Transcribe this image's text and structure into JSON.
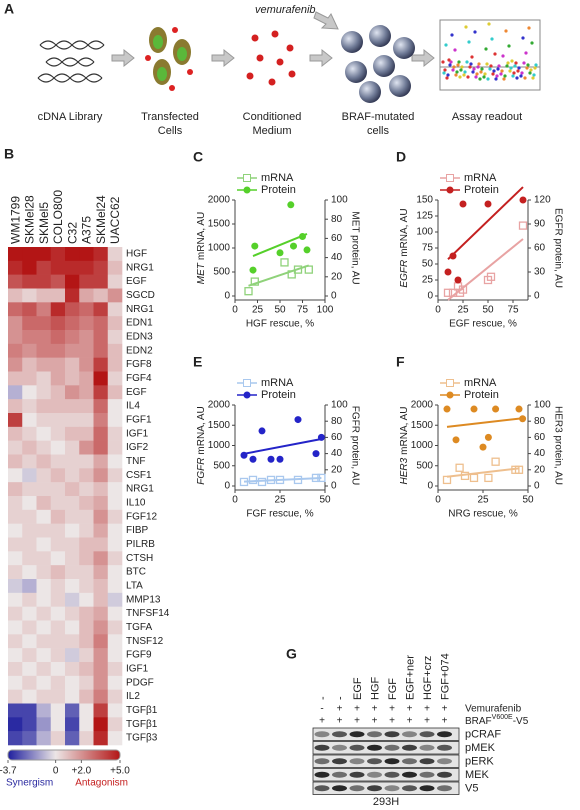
{
  "panel_a": {
    "label": "A",
    "drug": "vemurafenib",
    "steps": [
      [
        "cDNA Library"
      ],
      [
        "Transfected",
        "Cells"
      ],
      [
        "Conditioned",
        "Medium"
      ],
      [
        "BRAF-mutated",
        "cells"
      ],
      [
        "Assay readout"
      ]
    ]
  },
  "chart_data": [
    {
      "type": "heatmap",
      "label": "B",
      "columns": [
        "WM1799",
        "SKMel28",
        "SKMel5",
        "COLO800",
        "C32",
        "A375",
        "SKMel24",
        "UACC62"
      ],
      "rows": [
        "HGF",
        "NRG1",
        "EGF",
        "SGCD",
        "NRG1",
        "EDN1",
        "EDN3",
        "EDN2",
        "FGF8",
        "FGF4",
        "EGF",
        "IL4",
        "FGF1",
        "IGF1",
        "IGF2",
        "TNF",
        "CSF1",
        "NRG1",
        "IL10",
        "FGF12",
        "FIBP",
        "PILRB",
        "CTSH",
        "BTC",
        "LTA",
        "MMP13",
        "TNFSF14",
        "TGFA",
        "TNSF12",
        "FGF9",
        "IGF1",
        "PDGF",
        "IL2",
        "TGFβ1",
        "TGFβ1",
        "TGFβ3"
      ],
      "values": [
        [
          5,
          5,
          5,
          4.5,
          5,
          5,
          4.5,
          0.5
        ],
        [
          4.5,
          5,
          4,
          4.5,
          4.5,
          4.5,
          4,
          1
        ],
        [
          3.5,
          4,
          4,
          3.5,
          5,
          4,
          4,
          0.5
        ],
        [
          1,
          0.5,
          1,
          1,
          4.5,
          1.5,
          1,
          2
        ],
        [
          3,
          3.5,
          2.5,
          4.5,
          3.5,
          3,
          4,
          0.5
        ],
        [
          2,
          3,
          3,
          3.5,
          3,
          2.5,
          3,
          1
        ],
        [
          2,
          2.5,
          2.5,
          3,
          2.5,
          2,
          3,
          0.5
        ],
        [
          2.5,
          2,
          2.5,
          2.5,
          2,
          2,
          3,
          1
        ],
        [
          2,
          1,
          1.5,
          1.5,
          1,
          2,
          4,
          1
        ],
        [
          1,
          1,
          0.5,
          1.5,
          1,
          1.5,
          5,
          0.5
        ],
        [
          -1,
          0,
          0.5,
          1,
          2,
          1.5,
          4,
          1
        ],
        [
          1,
          0.5,
          1,
          1,
          1,
          1,
          3,
          0
        ],
        [
          4,
          0,
          0.5,
          0.5,
          0.5,
          0.5,
          2.5,
          0
        ],
        [
          1,
          0.5,
          0,
          0.5,
          1,
          1,
          3,
          0.5
        ],
        [
          0.5,
          1,
          0.5,
          0,
          0.5,
          2,
          3,
          0.5
        ],
        [
          1,
          0.5,
          1,
          0.5,
          0.5,
          0.5,
          1.5,
          0
        ],
        [
          0,
          -0.5,
          0.5,
          1,
          0.5,
          1,
          2,
          0.5
        ],
        [
          1,
          0.5,
          0.5,
          0.5,
          1,
          0.5,
          1,
          0
        ],
        [
          0.5,
          0,
          1,
          0.5,
          0.5,
          1,
          1.5,
          0
        ],
        [
          0.5,
          0.5,
          0,
          1,
          0.5,
          0.5,
          2,
          0.5
        ],
        [
          0,
          0.5,
          0.5,
          0.5,
          0,
          0.5,
          1.5,
          0
        ],
        [
          0.5,
          0.5,
          0,
          0.5,
          0.5,
          1,
          1,
          0
        ],
        [
          0,
          0.5,
          0.5,
          0,
          0.5,
          1,
          2,
          0.5
        ],
        [
          0.5,
          0,
          0.5,
          1,
          0.5,
          0.5,
          1.5,
          0
        ],
        [
          -0.5,
          -1,
          0,
          0.5,
          0,
          0.5,
          1,
          0
        ],
        [
          0,
          0.5,
          0,
          0.5,
          -0.5,
          0,
          1,
          -0.5
        ],
        [
          0.5,
          0,
          0.5,
          0,
          0.5,
          1,
          1.5,
          0
        ],
        [
          0,
          0.5,
          0,
          0.5,
          0,
          1,
          2,
          0.5
        ],
        [
          0.5,
          0,
          0.5,
          0.5,
          0.5,
          1,
          2.5,
          0
        ],
        [
          0,
          0.5,
          0,
          0.5,
          -0.5,
          0.5,
          2,
          0
        ],
        [
          0.5,
          0,
          0.5,
          0,
          0.5,
          1,
          2,
          0.5
        ],
        [
          0,
          0.5,
          0,
          0.5,
          0,
          0.5,
          2,
          0
        ],
        [
          0.5,
          0,
          0.5,
          0.5,
          0,
          1,
          2.5,
          0.5
        ],
        [
          -3,
          -3,
          -1,
          0,
          -2.5,
          0,
          4,
          0
        ],
        [
          -3.5,
          -3,
          -1.5,
          0,
          -3,
          0,
          5,
          0.5
        ],
        [
          -3,
          -2.5,
          -1,
          0.5,
          -2.5,
          0.5,
          4.5,
          0
        ]
      ],
      "colorbar": {
        "lim": [
          -3.7,
          5
        ],
        "colors": [
          "#1f1f9e",
          "#ece6e6",
          "#b31515"
        ],
        "ticks": [
          -3.7,
          0,
          {
            "value": 2,
            "label": "+2.0"
          },
          {
            "value": 5,
            "label": "+5.0"
          }
        ],
        "labels": [
          "Synergism",
          "Antagonism"
        ]
      }
    },
    {
      "type": "scatter",
      "label": "C",
      "xlabel": "HGF rescue, %",
      "ylabel_gene": "MET",
      "ylabel": "mRNA, AU",
      "y2label": "MET protein, AU",
      "xlim": [
        0,
        100
      ],
      "xticks": [
        0,
        25,
        50,
        75,
        100
      ],
      "ylim": [
        0,
        2000
      ],
      "yticks": [
        0,
        500,
        1000,
        1500,
        2000
      ],
      "y2lim": [
        0,
        100
      ],
      "y2ticks": [
        0,
        20,
        40,
        60,
        80,
        100
      ],
      "trendline": true,
      "series": [
        {
          "name": "mRNA",
          "color": "#8fd27a",
          "marker": "square",
          "x": [
            15,
            22,
            55,
            63,
            70,
            82
          ],
          "values": [
            100,
            300,
            700,
            450,
            550,
            550
          ]
        },
        {
          "name": "Protein",
          "color": "#55d02a",
          "marker": "circle",
          "axis": "y2",
          "x": [
            20,
            22,
            50,
            62,
            65,
            75,
            80
          ],
          "values": [
            27,
            52,
            45,
            95,
            52,
            62,
            48
          ]
        }
      ]
    },
    {
      "type": "scatter",
      "label": "D",
      "xlabel": "EGF rescue, %",
      "ylabel_gene": "EGFR",
      "ylabel": "mRNA, AU",
      "y2label": "EGFR protein, AU",
      "xlim": [
        0,
        90
      ],
      "xticks": [
        0,
        25,
        50,
        75
      ],
      "ylim": [
        0,
        150
      ],
      "yticks": [
        0,
        25,
        50,
        75,
        100,
        125,
        150
      ],
      "y2lim": [
        0,
        120
      ],
      "y2ticks": [
        0,
        30,
        60,
        90,
        120
      ],
      "trendline": true,
      "series": [
        {
          "name": "mRNA",
          "color": "#e8a3a3",
          "marker": "square",
          "x": [
            10,
            15,
            20,
            22,
            25,
            50,
            53,
            85
          ],
          "values": [
            5,
            5,
            15,
            5,
            10,
            25,
            30,
            110
          ]
        },
        {
          "name": "Protein",
          "color": "#c42020",
          "marker": "circle",
          "axis": "y2",
          "x": [
            10,
            15,
            20,
            25,
            50,
            85
          ],
          "values": [
            30,
            50,
            20,
            115,
            115,
            120
          ]
        }
      ]
    },
    {
      "type": "scatter",
      "label": "E",
      "xlabel": "FGF rescue, %",
      "ylabel_gene": "FGFR",
      "ylabel": "mRNA, AU",
      "y2label": "FGFR protein, AU",
      "xlim": [
        0,
        50
      ],
      "xticks": [
        0,
        25,
        50
      ],
      "ylim": [
        0,
        2000
      ],
      "yticks": [
        0,
        500,
        1000,
        1500,
        2000
      ],
      "y2lim": [
        0,
        100
      ],
      "y2ticks": [
        0,
        20,
        40,
        60,
        80,
        100
      ],
      "trendline": true,
      "series": [
        {
          "name": "mRNA",
          "color": "#a9c8ee",
          "marker": "square",
          "x": [
            5,
            10,
            15,
            20,
            25,
            35,
            45,
            48
          ],
          "values": [
            100,
            150,
            100,
            150,
            150,
            150,
            200,
            200
          ]
        },
        {
          "name": "Protein",
          "color": "#2424c8",
          "marker": "circle",
          "axis": "y2",
          "x": [
            5,
            10,
            15,
            20,
            25,
            35,
            45,
            48
          ],
          "values": [
            38,
            33,
            68,
            33,
            33,
            82,
            40,
            60
          ]
        }
      ]
    },
    {
      "type": "scatter",
      "label": "F",
      "xlabel": "NRG rescue, %",
      "ylabel_gene": "HER3",
      "ylabel": "mRNA, AU",
      "y2label": "HER3 protein, AU",
      "xlim": [
        0,
        50
      ],
      "xticks": [
        0,
        25,
        50
      ],
      "ylim": [
        0,
        2000
      ],
      "yticks": [
        0,
        500,
        1000,
        1500,
        2000
      ],
      "y2lim": [
        0,
        100
      ],
      "y2ticks": [
        0,
        20,
        40,
        60,
        80,
        100
      ],
      "trendline": true,
      "series": [
        {
          "name": "mRNA",
          "color": "#eebf8e",
          "marker": "square",
          "x": [
            5,
            12,
            15,
            20,
            28,
            32,
            43,
            45
          ],
          "values": [
            150,
            450,
            250,
            200,
            200,
            600,
            400,
            400
          ]
        },
        {
          "name": "Protein",
          "color": "#dd8a22",
          "marker": "circle",
          "axis": "y2",
          "x": [
            5,
            10,
            20,
            25,
            28,
            32,
            45,
            47
          ],
          "values": [
            95,
            57,
            95,
            48,
            60,
            95,
            95,
            83
          ]
        }
      ]
    }
  ],
  "panel_g": {
    "label": "G",
    "treatments": [
      "-",
      "-",
      "EGF",
      "HGF",
      "FGF",
      "EGF+ner",
      "HGF+crz",
      "FGF+074"
    ],
    "vemurafenib": {
      "label": "Vemurafenib",
      "marks": [
        "-",
        "+",
        "+",
        "+",
        "+",
        "+",
        "+",
        "+"
      ]
    },
    "braf": {
      "base": "BRAF",
      "sup": "V600E",
      "suffix": "-V5",
      "marks": [
        "+",
        "+",
        "+",
        "+",
        "+",
        "+",
        "+",
        "+"
      ]
    },
    "blots": [
      "pCRAF",
      "pMEK",
      "pERK",
      "MEK",
      "V5"
    ],
    "cell_line": "293H"
  }
}
